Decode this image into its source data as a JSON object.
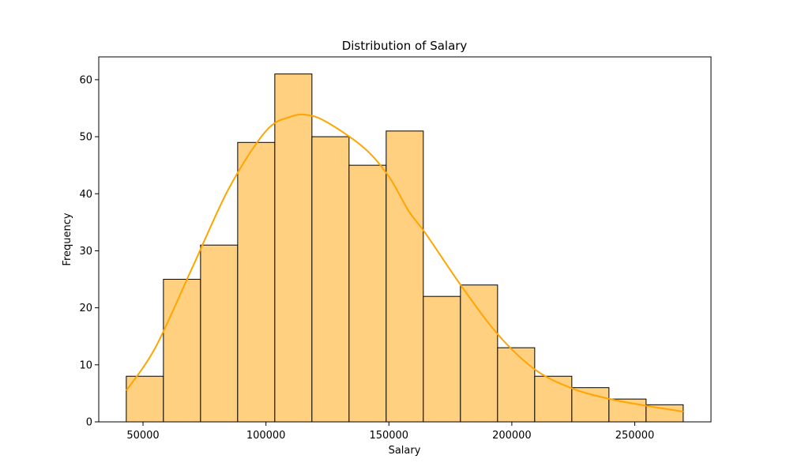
{
  "chart_data": {
    "type": "bar",
    "subtype": "histogram",
    "title": "Distribution of Salary",
    "xlabel": "Salary",
    "ylabel": "Frequency",
    "bin_edges": [
      43200,
      58300,
      73400,
      88500,
      103600,
      118700,
      133800,
      148900,
      164000,
      179100,
      194200,
      209300,
      224400,
      239500,
      254600,
      269700
    ],
    "counts": [
      8,
      25,
      31,
      49,
      61,
      50,
      45,
      51,
      22,
      24,
      13,
      8,
      6,
      4,
      3
    ],
    "kde": {
      "x": [
        43200,
        55000,
        70000,
        85000,
        100000,
        110000,
        117000,
        125000,
        140000,
        150000,
        158000,
        165000,
        180000,
        195000,
        210000,
        225000,
        240000,
        255000,
        269700
      ],
      "y": [
        5.5,
        13,
        27,
        41,
        51,
        53.5,
        53.8,
        52.5,
        48,
        43,
        37,
        33,
        23.5,
        15,
        9,
        5.8,
        4,
        2.8,
        1.8
      ]
    },
    "xlim": [
      32000,
      281000
    ],
    "ylim": [
      0,
      64
    ],
    "xticks": [
      50000,
      100000,
      150000,
      200000,
      250000
    ],
    "yticks": [
      0,
      10,
      20,
      30,
      40,
      50,
      60
    ],
    "grid": false,
    "colors": {
      "bar_fill": "#ffd07f",
      "bar_edge": "#000000",
      "kde_line": "#ffa500"
    }
  }
}
